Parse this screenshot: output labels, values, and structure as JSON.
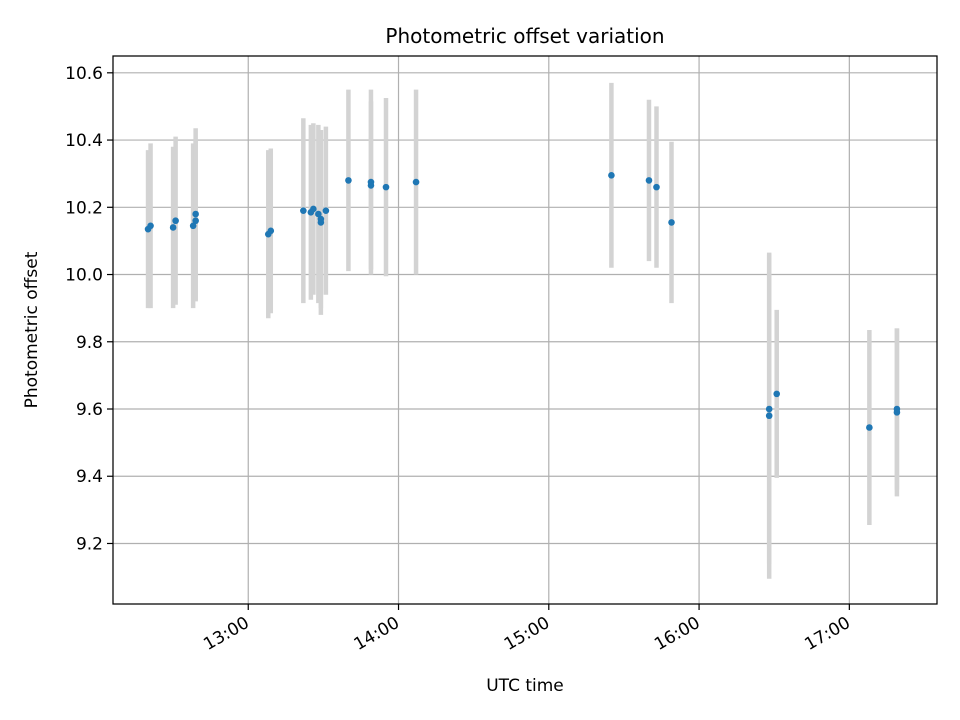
{
  "chart_data": {
    "type": "scatter",
    "title": "Photometric offset variation",
    "xlabel": "UTC time",
    "ylabel": "Photometric offset",
    "x_ticks": [
      "13:00",
      "14:00",
      "15:00",
      "16:00",
      "17:00"
    ],
    "y_ticks": [
      "9.2",
      "9.4",
      "9.6",
      "9.8",
      "10.0",
      "10.2",
      "10.4",
      "10.6"
    ],
    "xlim": [
      "12:06",
      "17:35"
    ],
    "ylim": [
      9.02,
      10.65
    ],
    "grid": true,
    "colors": {
      "point": "#1f77b4",
      "errorbar": "#d3d3d3",
      "grid": "#b0b0b0"
    },
    "points": [
      {
        "x": "12:20",
        "y": 10.135,
        "err": 0.235
      },
      {
        "x": "12:21",
        "y": 10.145,
        "err": 0.245
      },
      {
        "x": "12:30",
        "y": 10.14,
        "err": 0.24
      },
      {
        "x": "12:31",
        "y": 10.16,
        "err": 0.25
      },
      {
        "x": "12:38",
        "y": 10.145,
        "err": 0.245
      },
      {
        "x": "12:39",
        "y": 10.16,
        "err": 0.24
      },
      {
        "x": "12:39",
        "y": 10.18,
        "err": 0.255
      },
      {
        "x": "13:08",
        "y": 10.12,
        "err": 0.25
      },
      {
        "x": "13:09",
        "y": 10.13,
        "err": 0.245
      },
      {
        "x": "13:22",
        "y": 10.19,
        "err": 0.275
      },
      {
        "x": "13:25",
        "y": 10.185,
        "err": 0.26
      },
      {
        "x": "13:26",
        "y": 10.195,
        "err": 0.255
      },
      {
        "x": "13:28",
        "y": 10.18,
        "err": 0.265
      },
      {
        "x": "13:29",
        "y": 10.165,
        "err": 0.265
      },
      {
        "x": "13:29",
        "y": 10.155,
        "err": 0.275
      },
      {
        "x": "13:31",
        "y": 10.19,
        "err": 0.25
      },
      {
        "x": "13:40",
        "y": 10.28,
        "err": 0.27
      },
      {
        "x": "13:49",
        "y": 10.265,
        "err": 0.25
      },
      {
        "x": "13:49",
        "y": 10.275,
        "err": 0.275
      },
      {
        "x": "13:55",
        "y": 10.26,
        "err": 0.265
      },
      {
        "x": "14:07",
        "y": 10.275,
        "err": 0.275
      },
      {
        "x": "15:25",
        "y": 10.295,
        "err": 0.275
      },
      {
        "x": "15:40",
        "y": 10.28,
        "err": 0.24
      },
      {
        "x": "15:43",
        "y": 10.26,
        "err": 0.24
      },
      {
        "x": "15:49",
        "y": 10.155,
        "err": 0.24
      },
      {
        "x": "16:28",
        "y": 9.58,
        "err": 0.485
      },
      {
        "x": "16:28",
        "y": 9.6,
        "err": 0.46
      },
      {
        "x": "16:31",
        "y": 9.645,
        "err": 0.25
      },
      {
        "x": "17:08",
        "y": 9.545,
        "err": 0.29
      },
      {
        "x": "17:19",
        "y": 9.6,
        "err": 0.24
      },
      {
        "x": "17:19",
        "y": 9.59,
        "err": 0.25
      }
    ]
  }
}
